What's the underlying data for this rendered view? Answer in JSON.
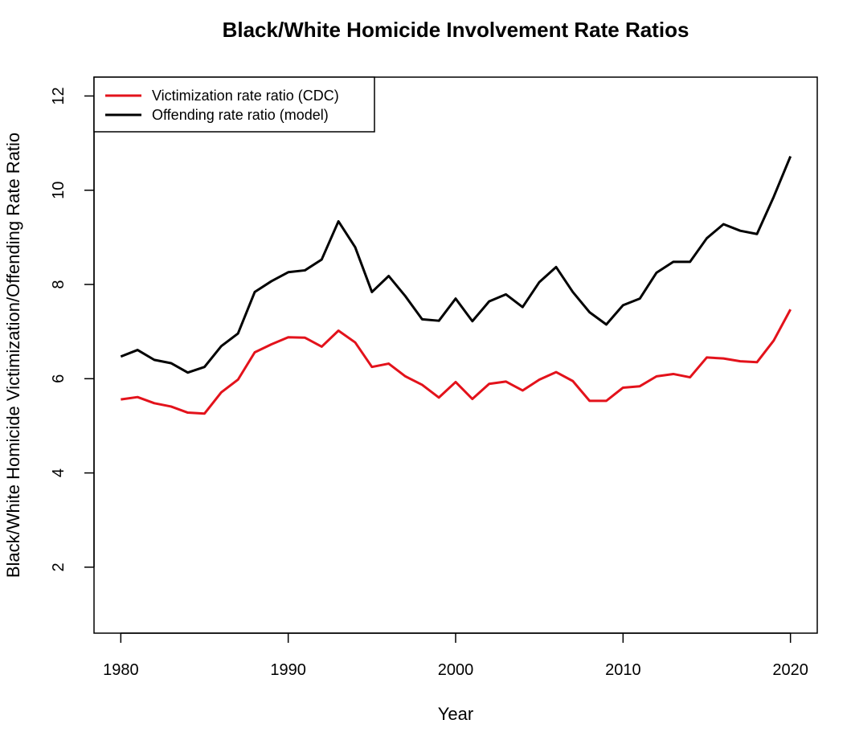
{
  "chart_data": {
    "type": "line",
    "title": "Black/White Homicide Involvement Rate Ratios",
    "xlabel": "Year",
    "ylabel": "Black/White Homicide Victimization/Offending Rate Ratio",
    "xlim": [
      1978.4,
      2021.6
    ],
    "ylim": [
      0.6,
      12.4
    ],
    "xticks": [
      1980,
      1990,
      2000,
      2010,
      2020
    ],
    "yticks": [
      2,
      4,
      6,
      8,
      10,
      12
    ],
    "legend_position": "top-left",
    "grid": false,
    "x": [
      1980,
      1981,
      1982,
      1983,
      1984,
      1985,
      1986,
      1987,
      1988,
      1989,
      1990,
      1991,
      1992,
      1993,
      1994,
      1995,
      1996,
      1997,
      1998,
      1999,
      2000,
      2001,
      2002,
      2003,
      2004,
      2005,
      2006,
      2007,
      2008,
      2009,
      2010,
      2011,
      2012,
      2013,
      2014,
      2015,
      2016,
      2017,
      2018,
      2019,
      2020
    ],
    "series": [
      {
        "name": "Victimization rate ratio (CDC)",
        "color": "#e3121b",
        "values": [
          5.56,
          5.61,
          5.48,
          5.41,
          5.28,
          5.26,
          5.71,
          5.98,
          6.56,
          6.73,
          6.88,
          6.87,
          6.68,
          7.02,
          6.77,
          6.25,
          6.32,
          6.05,
          5.87,
          5.6,
          5.93,
          5.57,
          5.89,
          5.94,
          5.75,
          5.98,
          6.14,
          5.95,
          5.53,
          5.53,
          5.81,
          5.84,
          6.05,
          6.1,
          6.03,
          6.45,
          6.43,
          6.37,
          6.35,
          6.81,
          7.47
        ]
      },
      {
        "name": "Offending rate ratio (model)",
        "color": "#000000",
        "values": [
          6.47,
          6.61,
          6.4,
          6.33,
          6.13,
          6.25,
          6.69,
          6.96,
          7.84,
          8.07,
          8.26,
          8.3,
          8.53,
          9.34,
          8.79,
          7.84,
          8.18,
          7.75,
          7.26,
          7.23,
          7.7,
          7.22,
          7.64,
          7.79,
          7.52,
          8.05,
          8.37,
          7.84,
          7.41,
          7.15,
          7.56,
          7.7,
          8.25,
          8.48,
          8.48,
          8.98,
          9.28,
          9.14,
          9.07,
          9.86,
          10.72
        ]
      }
    ]
  }
}
